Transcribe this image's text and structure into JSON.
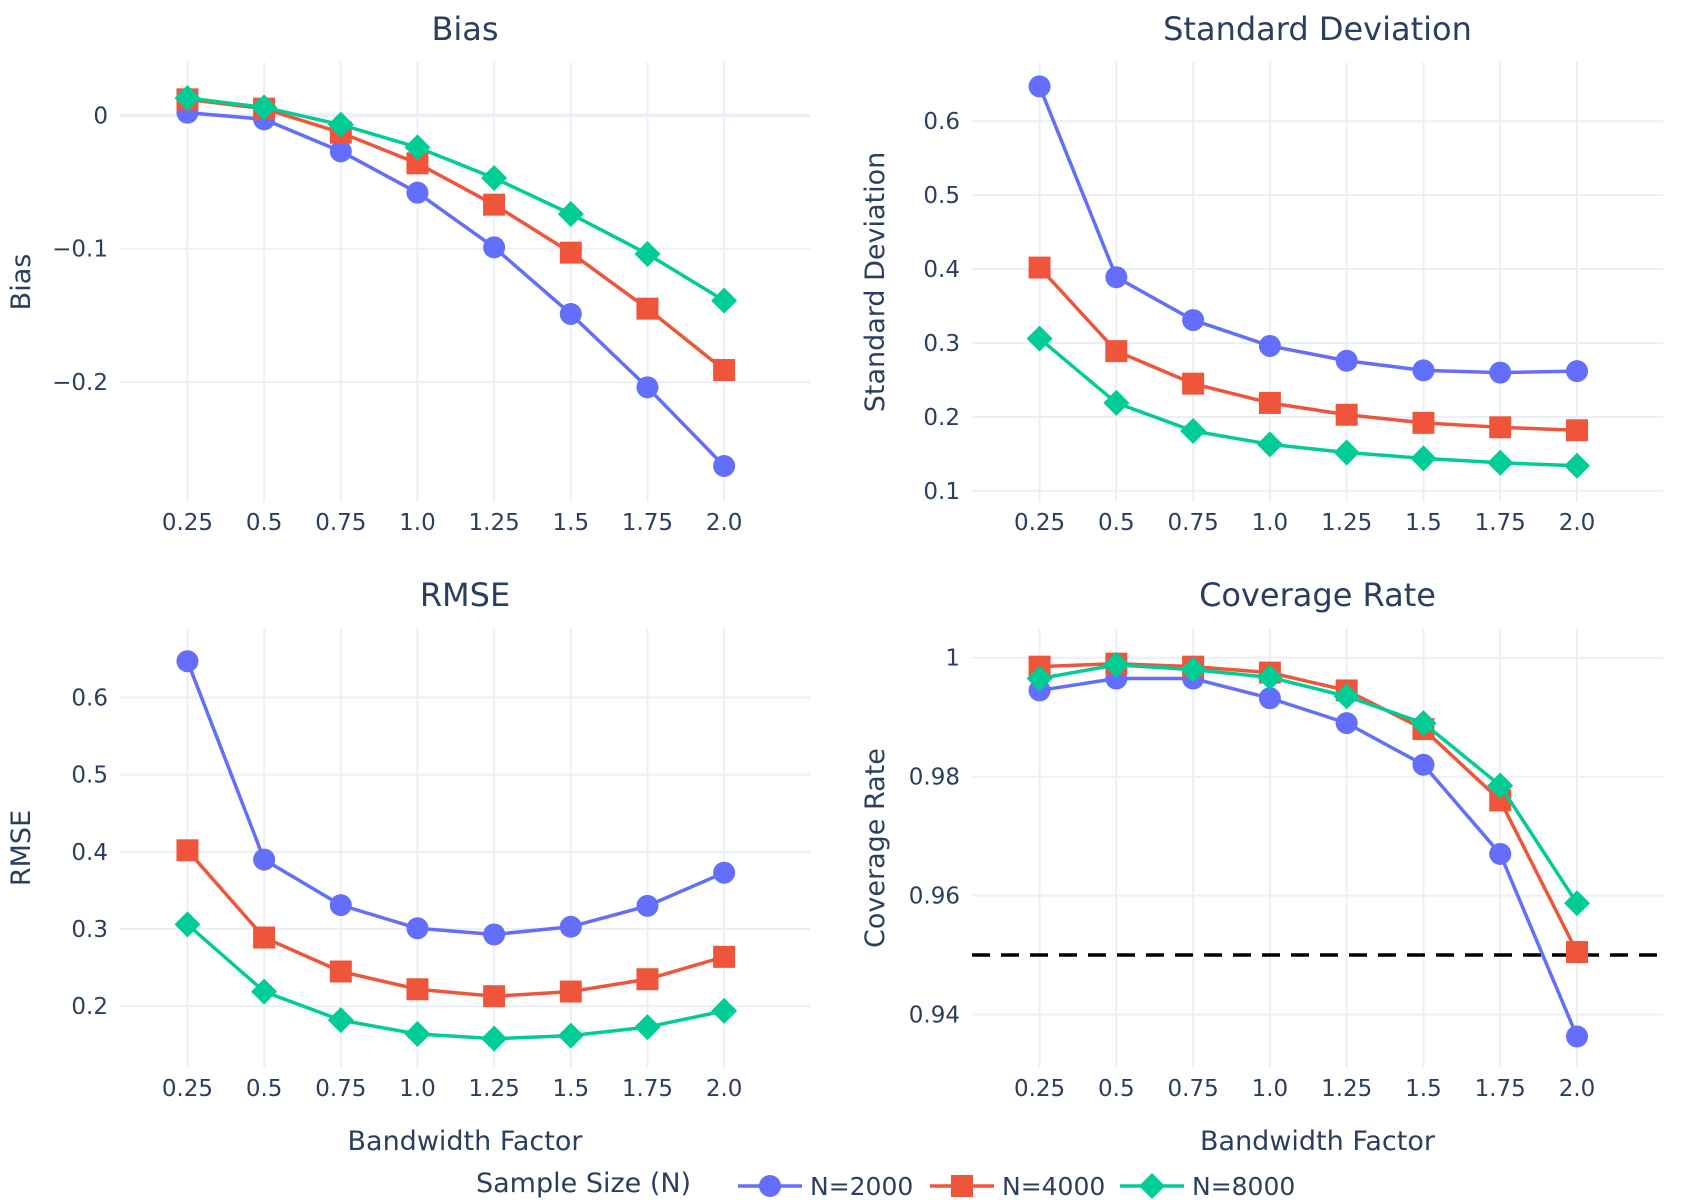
{
  "colors": {
    "N=2000": "#636efa",
    "N=4000": "#ef553b",
    "N=8000": "#00cc96",
    "text": "#2a3f5f",
    "grid": "#ebf0f8",
    "reference_line": "#000000"
  },
  "legend": {
    "title": "Sample Size (N)",
    "placement": "bottom-center",
    "items": [
      {
        "name": "N=2000",
        "marker": "circle"
      },
      {
        "name": "N=4000",
        "marker": "square"
      },
      {
        "name": "N=8000",
        "marker": "diamond"
      }
    ]
  },
  "chart_data": [
    {
      "type": "line",
      "title": "Bias",
      "xlabel": "",
      "ylabel": "Bias",
      "x": [
        0.25,
        0.5,
        0.75,
        1.0,
        1.25,
        1.5,
        1.75,
        2.0
      ],
      "xticks": [
        "0.25",
        "0.5",
        "0.75",
        "1.0",
        "1.25",
        "1.5",
        "1.75",
        "2.0"
      ],
      "xlim": [
        0.03,
        2.28
      ],
      "ylim": [
        -0.29,
        0.04
      ],
      "yticks": [
        0,
        -0.1,
        -0.2
      ],
      "ytick_labels": [
        "0",
        "−0.1",
        "−0.2"
      ],
      "zeroline": true,
      "grid": true,
      "series": [
        {
          "name": "N=2000",
          "values": [
            0.002,
            -0.003,
            -0.027,
            -0.058,
            -0.099,
            -0.149,
            -0.204,
            -0.263
          ]
        },
        {
          "name": "N=4000",
          "values": [
            0.012,
            0.005,
            -0.013,
            -0.036,
            -0.067,
            -0.103,
            -0.145,
            -0.191
          ]
        },
        {
          "name": "N=8000",
          "values": [
            0.013,
            0.006,
            -0.007,
            -0.024,
            -0.047,
            -0.074,
            -0.104,
            -0.139
          ]
        }
      ]
    },
    {
      "type": "line",
      "title": "Standard Deviation",
      "xlabel": "",
      "ylabel": "Standard Deviation",
      "x": [
        0.25,
        0.5,
        0.75,
        1.0,
        1.25,
        1.5,
        1.75,
        2.0
      ],
      "xticks": [
        "0.25",
        "0.5",
        "0.75",
        "1.0",
        "1.25",
        "1.5",
        "1.75",
        "2.0"
      ],
      "xlim": [
        0.03,
        2.28
      ],
      "ylim": [
        0.085,
        0.68
      ],
      "yticks": [
        0.1,
        0.2,
        0.3,
        0.4,
        0.5,
        0.6
      ],
      "ytick_labels": [
        "0.1",
        "0.2",
        "0.3",
        "0.4",
        "0.5",
        "0.6"
      ],
      "grid": true,
      "series": [
        {
          "name": "N=2000",
          "values": [
            0.647,
            0.389,
            0.331,
            0.296,
            0.276,
            0.263,
            0.26,
            0.262
          ]
        },
        {
          "name": "N=4000",
          "values": [
            0.402,
            0.289,
            0.245,
            0.219,
            0.203,
            0.192,
            0.186,
            0.182
          ]
        },
        {
          "name": "N=8000",
          "values": [
            0.306,
            0.219,
            0.181,
            0.163,
            0.152,
            0.144,
            0.138,
            0.134
          ]
        }
      ]
    },
    {
      "type": "line",
      "title": "RMSE",
      "xlabel": "Bandwidth Factor",
      "ylabel": "RMSE",
      "x": [
        0.25,
        0.5,
        0.75,
        1.0,
        1.25,
        1.5,
        1.75,
        2.0
      ],
      "xticks": [
        "0.25",
        "0.5",
        "0.75",
        "1.0",
        "1.25",
        "1.5",
        "1.75",
        "2.0"
      ],
      "xlim": [
        0.03,
        2.28
      ],
      "ylim": [
        0.12,
        0.69
      ],
      "yticks": [
        0.2,
        0.3,
        0.4,
        0.5,
        0.6
      ],
      "ytick_labels": [
        "0.2",
        "0.3",
        "0.4",
        "0.5",
        "0.6"
      ],
      "grid": true,
      "series": [
        {
          "name": "N=2000",
          "values": [
            0.647,
            0.39,
            0.331,
            0.301,
            0.293,
            0.303,
            0.33,
            0.373
          ]
        },
        {
          "name": "N=4000",
          "values": [
            0.402,
            0.289,
            0.245,
            0.222,
            0.213,
            0.219,
            0.235,
            0.264
          ]
        },
        {
          "name": "N=8000",
          "values": [
            0.306,
            0.219,
            0.182,
            0.164,
            0.158,
            0.162,
            0.173,
            0.194
          ]
        }
      ]
    },
    {
      "type": "line",
      "title": "Coverage Rate",
      "xlabel": "Bandwidth Factor",
      "ylabel": "Coverage Rate",
      "x": [
        0.25,
        0.5,
        0.75,
        1.0,
        1.25,
        1.5,
        1.75,
        2.0
      ],
      "xticks": [
        "0.25",
        "0.5",
        "0.75",
        "1.0",
        "1.25",
        "1.5",
        "1.75",
        "2.0"
      ],
      "xlim": [
        0.03,
        2.28
      ],
      "ylim": [
        0.931,
        1.005
      ],
      "yticks": [
        0.94,
        0.96,
        0.98,
        1.0
      ],
      "ytick_labels": [
        "0.94",
        "0.96",
        "0.98",
        "1"
      ],
      "grid": true,
      "reference_line": {
        "y": 0.95,
        "style": "dashed"
      },
      "series": [
        {
          "name": "N=2000",
          "values": [
            0.9945,
            0.9965,
            0.9965,
            0.9932,
            0.989,
            0.982,
            0.967,
            0.9363
          ]
        },
        {
          "name": "N=4000",
          "values": [
            0.9985,
            0.999,
            0.9985,
            0.9975,
            0.9945,
            0.988,
            0.976,
            0.9505
          ]
        },
        {
          "name": "N=8000",
          "values": [
            0.9965,
            0.9988,
            0.998,
            0.9967,
            0.9935,
            0.989,
            0.9785,
            0.9587
          ]
        }
      ]
    }
  ]
}
